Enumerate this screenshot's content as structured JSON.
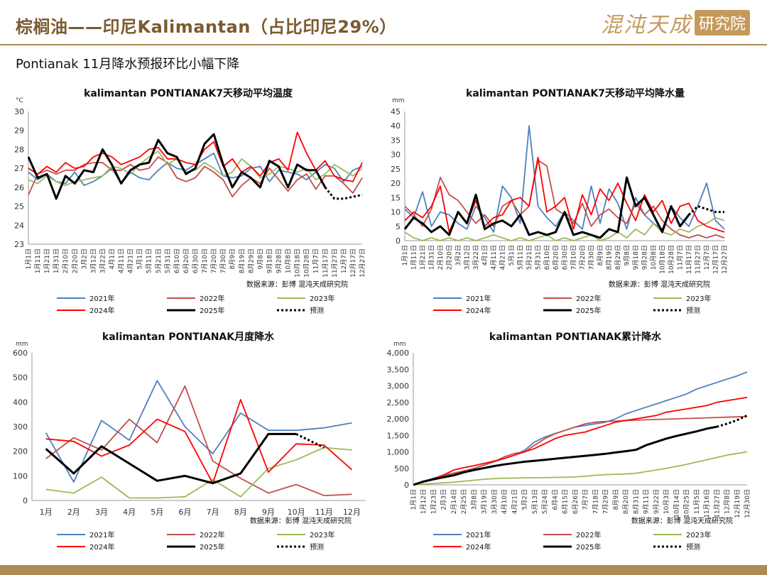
{
  "header": {
    "title": "棕榈油——印尼Kalimantan（占比印尼29%）",
    "logo_text": "混沌天成",
    "logo_box": "研究院"
  },
  "subtitle": "Pontianak 11月降水预报环比小幅下降",
  "colors": {
    "2021": "#4f81bd",
    "2022": "#c0504d",
    "2023": "#9bbb59",
    "2024": "#ff0000",
    "2025": "#000000",
    "forecast": "#000000"
  },
  "source": "数据来源：彭博  混沌天成研究院",
  "legend": [
    "2021年",
    "2022年",
    "2023年",
    "2024年",
    "2025年",
    "预测"
  ],
  "chart_data": [
    {
      "type": "line",
      "id": "temp",
      "title": "kalimantan PONTIANAK7天移动平均温度",
      "unit": "°C",
      "ylim": [
        23,
        30
      ],
      "yticks": [
        23,
        24,
        25,
        26,
        27,
        28,
        29,
        30
      ],
      "x_ticks": [
        "1月1日",
        "1月11日",
        "1月21日",
        "1月31日",
        "2月10日",
        "2月20日",
        "3月2日",
        "3月12日",
        "3月22日",
        "4月1日",
        "4月11日",
        "4月21日",
        "5月1日",
        "5月11日",
        "5月21日",
        "5月31日",
        "6月10日",
        "6月20日",
        "6月30日",
        "7月10日",
        "7月20日",
        "7月30日",
        "8月9日",
        "8月19日",
        "8月29日",
        "9月8日",
        "9月18日",
        "9月28日",
        "10月8日",
        "10月18日",
        "10月28日",
        "11月7日",
        "11月17日",
        "11月27日",
        "12月7日",
        "12月17日",
        "12月27日"
      ],
      "series": [
        {
          "name": "2021年",
          "style": "solid",
          "values": [
            26.8,
            26.4,
            26.7,
            26.3,
            26.2,
            26.8,
            26.1,
            26.3,
            26.6,
            27.0,
            26.2,
            26.8,
            26.5,
            26.4,
            26.9,
            27.3,
            27.0,
            26.9,
            27.2,
            27.5,
            27.8,
            26.6,
            26.5,
            26.6,
            27.0,
            27.1,
            26.3,
            26.9,
            26.8,
            26.7,
            26.4,
            26.8,
            27.2,
            27.0,
            26.3,
            26.9,
            27.1
          ]
        },
        {
          "name": "2022年",
          "style": "solid",
          "values": [
            25.6,
            26.7,
            26.9,
            26.7,
            26.9,
            26.9,
            27.2,
            27.3,
            27.3,
            26.9,
            26.9,
            27.2,
            26.9,
            27.0,
            27.6,
            27.3,
            26.5,
            26.3,
            26.5,
            27.1,
            26.8,
            26.4,
            25.5,
            26.1,
            26.5,
            26.2,
            27.0,
            26.4,
            25.8,
            26.4,
            26.7,
            25.9,
            26.6,
            26.6,
            26.2,
            25.7,
            26.5
          ]
        },
        {
          "name": "2023年",
          "style": "solid",
          "values": [
            26.4,
            26.2,
            26.6,
            26.3,
            26.1,
            26.3,
            26.4,
            26.5,
            26.6,
            27.1,
            27.0,
            26.7,
            27.2,
            27.6,
            27.9,
            27.2,
            27.5,
            26.8,
            26.9,
            27.3,
            27.0,
            26.6,
            26.8,
            27.5,
            27.1,
            26.5,
            26.7,
            27.1,
            27.0,
            26.8,
            27.0,
            26.4,
            26.7,
            27.2,
            26.9,
            26.6,
            27.0
          ]
        },
        {
          "name": "2024年",
          "style": "solid",
          "values": [
            27.0,
            26.7,
            27.1,
            26.8,
            27.3,
            27.0,
            27.1,
            27.6,
            27.8,
            27.6,
            27.2,
            27.4,
            27.6,
            28.0,
            28.1,
            27.5,
            27.5,
            27.3,
            27.2,
            28.0,
            28.4,
            27.1,
            27.5,
            26.8,
            27.1,
            26.6,
            27.3,
            27.5,
            26.9,
            28.9,
            27.8,
            26.9,
            27.4,
            26.6,
            26.4,
            26.3,
            27.3
          ]
        },
        {
          "name": "2025年",
          "style": "solid",
          "values": [
            27.6,
            26.5,
            26.7,
            25.4,
            26.6,
            26.2,
            26.9,
            26.8,
            28.0,
            27.2,
            26.2,
            26.9,
            27.2,
            27.3,
            28.5,
            27.8,
            27.6,
            26.7,
            27.0,
            28.3,
            28.8,
            27.2,
            26.0,
            26.8,
            26.5,
            26.0,
            27.4,
            27.1,
            26.0,
            27.2,
            26.9,
            26.9,
            26.0
          ]
        },
        {
          "name": "预测",
          "style": "dotted",
          "values": [
            null,
            null,
            null,
            null,
            null,
            null,
            null,
            null,
            null,
            null,
            null,
            null,
            null,
            null,
            null,
            null,
            null,
            null,
            null,
            null,
            null,
            null,
            null,
            null,
            null,
            null,
            null,
            null,
            null,
            null,
            null,
            null,
            26.0,
            25.4,
            25.4,
            25.5,
            25.6
          ]
        }
      ]
    },
    {
      "type": "line",
      "id": "rain7",
      "title": "kalimantan PONTIANAK7天移动平均降水量",
      "unit": "mm",
      "ylim": [
        0,
        45
      ],
      "yticks": [
        0,
        5,
        10,
        15,
        20,
        25,
        30,
        35,
        40,
        45
      ],
      "x_ticks": [
        "1月1日",
        "1月11日",
        "1月21日",
        "1月31日",
        "2月10日",
        "2月20日",
        "3月2日",
        "3月12日",
        "3月22日",
        "4月1日",
        "4月11日",
        "4月21日",
        "5月1日",
        "5月11日",
        "5月21日",
        "5月31日",
        "6月10日",
        "6月20日",
        "6月30日",
        "7月10日",
        "7月20日",
        "7月30日",
        "8月9日",
        "8月19日",
        "8月29日",
        "9月8日",
        "9月18日",
        "9月28日",
        "10月8日",
        "10月18日",
        "10月28日",
        "11月7日",
        "11月17日",
        "11月27日",
        "12月7日",
        "12月17日",
        "12月27日"
      ],
      "series": [
        {
          "name": "2021年",
          "style": "solid",
          "values": [
            11,
            8,
            17,
            5,
            10,
            9,
            6,
            4,
            12,
            8,
            3,
            19,
            15,
            6,
            40,
            12,
            8,
            5,
            10,
            7,
            4,
            19,
            6,
            18,
            13,
            4,
            15,
            9,
            6,
            4,
            12,
            8,
            5,
            12,
            20,
            7,
            4
          ]
        },
        {
          "name": "2022年",
          "style": "solid",
          "values": [
            12,
            9,
            5,
            11,
            22,
            16,
            14,
            10,
            6,
            9,
            5,
            12,
            14,
            9,
            12,
            28,
            26,
            11,
            9,
            6,
            13,
            5,
            9,
            11,
            8,
            6,
            13,
            9,
            12,
            7,
            4,
            2,
            1,
            2,
            1,
            2,
            1
          ]
        },
        {
          "name": "2023年",
          "style": "solid",
          "values": [
            3,
            1,
            0,
            1,
            0,
            1,
            0,
            1,
            0,
            1,
            2,
            1,
            0,
            1,
            0,
            1,
            2,
            0,
            1,
            0,
            1,
            2,
            0,
            1,
            3,
            1,
            4,
            2,
            6,
            3,
            2,
            4,
            3,
            5,
            6,
            8,
            7
          ]
        },
        {
          "name": "2024年",
          "style": "solid",
          "values": [
            7,
            10,
            8,
            12,
            19,
            3,
            10,
            6,
            14,
            5,
            8,
            9,
            14,
            15,
            12,
            29,
            10,
            12,
            15,
            4,
            16,
            9,
            18,
            14,
            20,
            13,
            7,
            16,
            10,
            14,
            6,
            12,
            13,
            7,
            5,
            4,
            3
          ]
        },
        {
          "name": "2025年",
          "style": "solid",
          "values": [
            4,
            8,
            6,
            3,
            5,
            2,
            10,
            6,
            16,
            4,
            6,
            7,
            5,
            9,
            2,
            3,
            2,
            3,
            10,
            2,
            3,
            2,
            1,
            4,
            3,
            22,
            12,
            15,
            9,
            3,
            12,
            5,
            9
          ]
        },
        {
          "name": "预测",
          "style": "dotted",
          "values": [
            null,
            null,
            null,
            null,
            null,
            null,
            null,
            null,
            null,
            null,
            null,
            null,
            null,
            null,
            null,
            null,
            null,
            null,
            null,
            null,
            null,
            null,
            null,
            null,
            null,
            null,
            null,
            null,
            null,
            null,
            null,
            null,
            9,
            12,
            11,
            10,
            10
          ]
        }
      ]
    },
    {
      "type": "line",
      "id": "monthly",
      "title": "kalimantan PONTIANAK月度降水",
      "unit": "mm",
      "ylim": [
        0,
        600
      ],
      "yticks": [
        0,
        100,
        200,
        300,
        400,
        500,
        600
      ],
      "categories": [
        "1月",
        "2月",
        "3月",
        "4月",
        "5月",
        "6月",
        "7月",
        "8月",
        "9月",
        "10月",
        "11月",
        "12月"
      ],
      "series": [
        {
          "name": "2021年",
          "style": "solid",
          "values": [
            275,
            75,
            325,
            245,
            487,
            300,
            190,
            355,
            285,
            285,
            295,
            315
          ]
        },
        {
          "name": "2022年",
          "style": "solid",
          "values": [
            170,
            255,
            205,
            330,
            235,
            465,
            160,
            90,
            30,
            65,
            20,
            25
          ]
        },
        {
          "name": "2023年",
          "style": "solid",
          "values": [
            45,
            30,
            95,
            10,
            10,
            15,
            85,
            15,
            130,
            165,
            215,
            205
          ]
        },
        {
          "name": "2024年",
          "style": "solid",
          "values": [
            250,
            240,
            180,
            225,
            330,
            280,
            70,
            410,
            115,
            230,
            225,
            125
          ]
        },
        {
          "name": "2025年",
          "style": "solid",
          "values": [
            210,
            110,
            220,
            150,
            80,
            100,
            70,
            110,
            270,
            270,
            null,
            null
          ]
        },
        {
          "name": "预测",
          "style": "dotted",
          "values": [
            null,
            null,
            null,
            null,
            null,
            null,
            null,
            null,
            null,
            270,
            215,
            null
          ]
        }
      ]
    },
    {
      "type": "line",
      "id": "cumulative",
      "title": "kalimantan PONTIANAK累计降水",
      "unit": "mm",
      "ylim": [
        0,
        4000
      ],
      "yticks": [
        "0",
        "500",
        "1,000",
        "1,500",
        "2,000",
        "2,500",
        "3,000",
        "3,500",
        "4,000"
      ],
      "x_ticks": [
        "1月1日",
        "1月12日",
        "1月23日",
        "2月3日",
        "2月14日",
        "2月25日",
        "3月8日",
        "3月19日",
        "3月30日",
        "4月10日",
        "4月21日",
        "5月2日",
        "5月13日",
        "5月24日",
        "6月4日",
        "6月15日",
        "6月26日",
        "7月7日",
        "7月18日",
        "7月29日",
        "8月9日",
        "8月20日",
        "8月31日",
        "9月11日",
        "9月22日",
        "10月3日",
        "10月14日",
        "10月25日",
        "11月5日",
        "11月16日",
        "11月27日",
        "12月8日",
        "12月19日",
        "12月30日"
      ],
      "series": [
        {
          "name": "2021年",
          "style": "solid",
          "values": [
            0,
            100,
            200,
            300,
            350,
            400,
            500,
            600,
            700,
            800,
            900,
            1050,
            1300,
            1450,
            1550,
            1650,
            1750,
            1800,
            1850,
            1900,
            2000,
            2150,
            2250,
            2350,
            2450,
            2550,
            2650,
            2750,
            2900,
            3000,
            3100,
            3200,
            3300,
            3420
          ]
        },
        {
          "name": "2022年",
          "style": "solid",
          "values": [
            0,
            80,
            160,
            260,
            360,
            420,
            500,
            600,
            700,
            850,
            950,
            1000,
            1200,
            1400,
            1550,
            1650,
            1750,
            1850,
            1900,
            1920,
            1930,
            1950,
            1960,
            1970,
            1980,
            1990,
            2000,
            2010,
            2020,
            2030,
            2040,
            2050,
            2060,
            2070
          ]
        },
        {
          "name": "2023年",
          "style": "solid",
          "values": [
            0,
            20,
            40,
            60,
            80,
            110,
            140,
            170,
            190,
            200,
            205,
            210,
            215,
            220,
            225,
            230,
            240,
            260,
            290,
            310,
            320,
            330,
            350,
            400,
            450,
            500,
            560,
            620,
            690,
            760,
            830,
            900,
            950,
            1000
          ]
        },
        {
          "name": "2024年",
          "style": "solid",
          "values": [
            0,
            90,
            180,
            300,
            450,
            520,
            580,
            650,
            720,
            800,
            900,
            1000,
            1100,
            1250,
            1400,
            1500,
            1550,
            1600,
            1700,
            1800,
            1900,
            1950,
            2000,
            2050,
            2100,
            2200,
            2250,
            2300,
            2350,
            2400,
            2500,
            2550,
            2600,
            2650
          ]
        },
        {
          "name": "2025年",
          "style": "solid",
          "values": [
            0,
            100,
            170,
            230,
            290,
            380,
            450,
            510,
            570,
            620,
            660,
            700,
            730,
            760,
            790,
            820,
            850,
            880,
            910,
            940,
            980,
            1020,
            1060,
            1200,
            1300,
            1400,
            1480,
            1550,
            1620,
            1700,
            1760,
            null,
            null,
            null
          ]
        },
        {
          "name": "预测",
          "style": "dotted",
          "values": [
            null,
            null,
            null,
            null,
            null,
            null,
            null,
            null,
            null,
            null,
            null,
            null,
            null,
            null,
            null,
            null,
            null,
            null,
            null,
            null,
            null,
            null,
            null,
            null,
            null,
            null,
            null,
            null,
            null,
            null,
            1760,
            1850,
            1960,
            2100
          ]
        }
      ]
    }
  ]
}
